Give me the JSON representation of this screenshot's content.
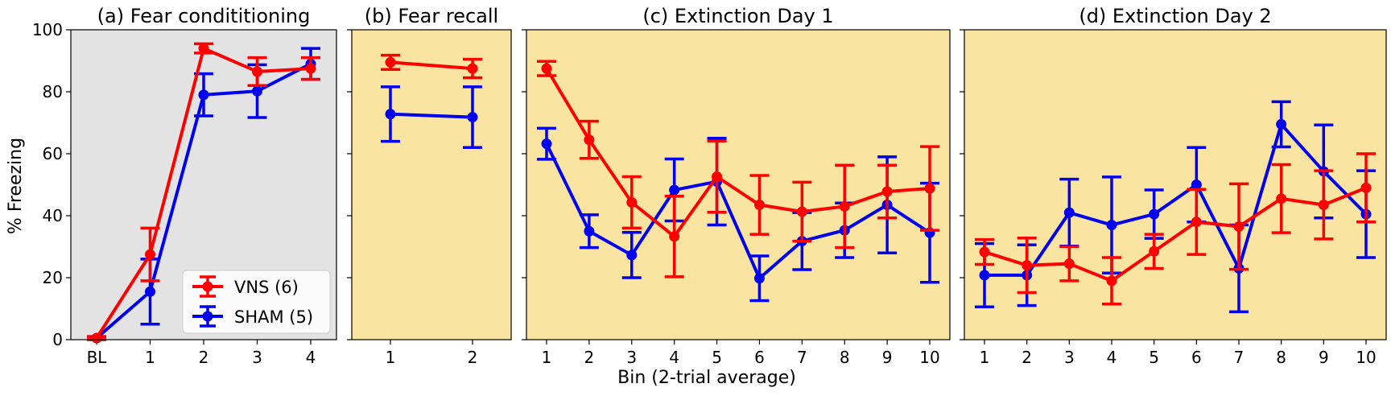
{
  "figure": {
    "ylabel": "% Freezing",
    "xlabel": "Bin (2-trial average)",
    "colors": {
      "vns": "#ff0000",
      "sham": "#0000ee",
      "bg_conditioning": "#e3e3e3",
      "bg_extinction": "#f9e4a1"
    }
  },
  "chart_data": [
    {
      "type": "line",
      "title": "(a) Fear condititioning",
      "categories": [
        "BL",
        "1",
        "2",
        "3",
        "4"
      ],
      "ylim": [
        0,
        100
      ],
      "yticks": [
        "0",
        "20",
        "40",
        "60",
        "80",
        "100"
      ],
      "legend": {
        "placement": "bottom-right",
        "entries": [
          "VNS (6)",
          "SHAM (5)"
        ]
      },
      "series": [
        {
          "name": "VNS (6)",
          "values": [
            0.5,
            27.5,
            94,
            86.5,
            87.5
          ],
          "err": [
            0.5,
            8.5,
            1.5,
            4.5,
            3.5
          ]
        },
        {
          "name": "SHAM (5)",
          "values": [
            0.5,
            15.5,
            79,
            80.2,
            89
          ],
          "err": [
            0.5,
            10.5,
            6.8,
            8.5,
            5
          ]
        }
      ]
    },
    {
      "type": "line",
      "title": "(b) Fear recall",
      "categories": [
        "1",
        "2"
      ],
      "ylim": [
        0,
        100
      ],
      "series": [
        {
          "name": "VNS (6)",
          "values": [
            89.5,
            87.5
          ],
          "err": [
            2.3,
            3
          ]
        },
        {
          "name": "SHAM (5)",
          "values": [
            72.8,
            71.8
          ],
          "err": [
            8.8,
            9.8
          ]
        }
      ]
    },
    {
      "type": "line",
      "title": "(c) Extinction Day 1",
      "categories": [
        "1",
        "2",
        "3",
        "4",
        "5",
        "6",
        "7",
        "8",
        "9",
        "10"
      ],
      "ylim": [
        0,
        100
      ],
      "series": [
        {
          "name": "VNS (6)",
          "values": [
            87.5,
            64.5,
            44.3,
            33.3,
            52.6,
            43.5,
            41.3,
            43,
            47.8,
            48.8
          ],
          "err": [
            2.3,
            6,
            8.3,
            13,
            11.5,
            9.5,
            9.5,
            13.3,
            8.5,
            13.5
          ]
        },
        {
          "name": "SHAM (5)",
          "values": [
            63.2,
            35,
            27.3,
            48.3,
            51,
            19.8,
            31.8,
            35.3,
            43.5,
            34.5
          ],
          "err": [
            5,
            5.3,
            7.3,
            10,
            14,
            7.2,
            9.2,
            8.8,
            15.5,
            16
          ]
        }
      ]
    },
    {
      "type": "line",
      "title": "(d) Extinction Day 2",
      "categories": [
        "1",
        "2",
        "3",
        "4",
        "5",
        "6",
        "7",
        "8",
        "9",
        "10"
      ],
      "ylim": [
        0,
        100
      ],
      "series": [
        {
          "name": "VNS (6)",
          "values": [
            28.3,
            24,
            24.5,
            19,
            28.5,
            38,
            36.5,
            45.5,
            43.5,
            49
          ],
          "err": [
            4,
            8.8,
            5.5,
            7.5,
            5.5,
            10.5,
            13.8,
            11,
            11,
            11
          ]
        },
        {
          "name": "SHAM (5)",
          "values": [
            20.8,
            20.8,
            41,
            37,
            40.5,
            50,
            23,
            69.5,
            54.3,
            40.5
          ],
          "err": [
            10.2,
            9.8,
            10.8,
            15.5,
            7.8,
            12,
            14,
            7.3,
            15,
            14
          ]
        }
      ]
    }
  ]
}
